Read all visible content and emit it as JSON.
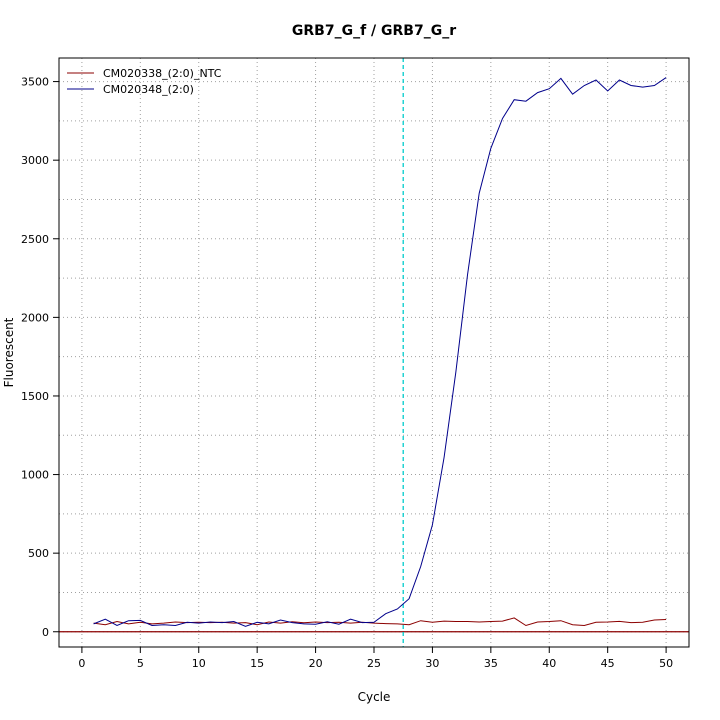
{
  "chart_data": {
    "type": "line",
    "title": "GRB7_G_f / GRB7_G_r",
    "xlabel": "Cycle",
    "ylabel": "Fluorescent",
    "xlim": [
      -1.96,
      51.96
    ],
    "ylim": [
      -97,
      3650
    ],
    "x_ticks": [
      0,
      5,
      10,
      15,
      20,
      25,
      30,
      35,
      40,
      45,
      50
    ],
    "y_ticks": [
      0,
      500,
      1000,
      1500,
      2000,
      2500,
      3000,
      3500
    ],
    "grid": true,
    "grid_style": "dotted",
    "legend_position": "top-left",
    "threshold": {
      "x": 27.5,
      "color": "#00CCCC",
      "style": "dashed"
    },
    "baseline": {
      "y": 0,
      "color": "#8B0000"
    },
    "series": [
      {
        "name": "CM020338_(2:0)_NTC",
        "color": "#8B0000",
        "x": [
          1,
          2,
          3,
          4,
          5,
          6,
          7,
          8,
          9,
          10,
          11,
          12,
          13,
          14,
          15,
          16,
          17,
          18,
          19,
          20,
          21,
          22,
          23,
          24,
          25,
          26,
          27,
          28,
          29,
          30,
          31,
          32,
          33,
          34,
          35,
          36,
          37,
          38,
          39,
          40,
          41,
          42,
          43,
          44,
          45,
          46,
          47,
          48,
          49,
          50
        ],
        "values": [
          55,
          45,
          65,
          50,
          60,
          50,
          55,
          62,
          58,
          60,
          58,
          60,
          55,
          58,
          45,
          62,
          55,
          63,
          57,
          62,
          58,
          60,
          55,
          60,
          55,
          52,
          50,
          45,
          70,
          60,
          68,
          65,
          65,
          62,
          65,
          68,
          88,
          40,
          62,
          65,
          70,
          45,
          40,
          60,
          62,
          66,
          58,
          60,
          75,
          78
        ]
      },
      {
        "name": "CM020348_(2:0)",
        "color": "#00008B",
        "x": [
          1,
          2,
          3,
          4,
          5,
          6,
          7,
          8,
          9,
          10,
          11,
          12,
          13,
          14,
          15,
          16,
          17,
          18,
          19,
          20,
          21,
          22,
          23,
          24,
          25,
          26,
          27,
          28,
          29,
          30,
          31,
          32,
          33,
          34,
          35,
          36,
          37,
          38,
          39,
          40,
          41,
          42,
          43,
          44,
          45,
          46,
          47,
          48,
          49,
          50
        ],
        "values": [
          50,
          80,
          40,
          70,
          72,
          40,
          45,
          40,
          60,
          55,
          62,
          58,
          65,
          35,
          60,
          50,
          75,
          58,
          50,
          48,
          64,
          48,
          80,
          58,
          60,
          115,
          145,
          210,
          415,
          680,
          1110,
          1650,
          2270,
          2790,
          3075,
          3265,
          3385,
          3375,
          3430,
          3455,
          3520,
          3420,
          3475,
          3510,
          3440,
          3510,
          3475,
          3465,
          3475,
          3525
        ]
      }
    ]
  }
}
